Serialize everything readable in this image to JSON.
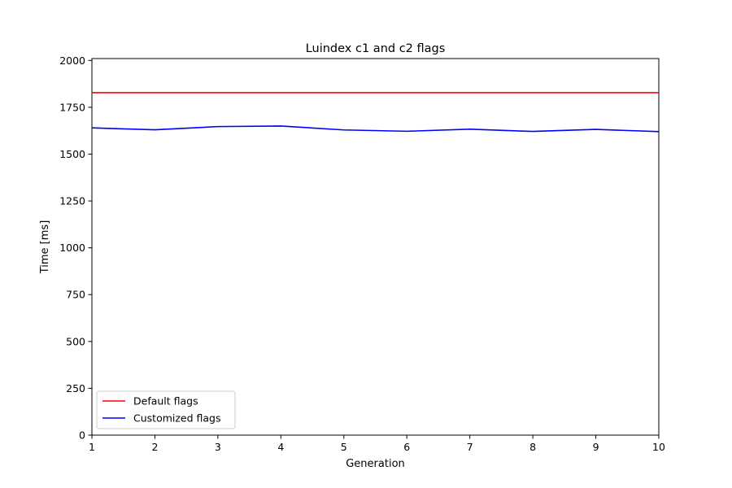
{
  "chart_data": {
    "type": "line",
    "title": "Luindex c1 and c2 flags",
    "xlabel": "Generation",
    "ylabel": "Time [ms]",
    "xlim": [
      1,
      10
    ],
    "ylim": [
      0,
      2010
    ],
    "xticks": [
      "1",
      "2",
      "3",
      "4",
      "5",
      "6",
      "7",
      "8",
      "9",
      "10"
    ],
    "yticks": [
      "0",
      "250",
      "500",
      "750",
      "1000",
      "1250",
      "1500",
      "1750",
      "2000"
    ],
    "grid": false,
    "legend_position": "lower-left",
    "x": [
      1,
      2,
      3,
      4,
      5,
      6,
      7,
      8,
      9,
      10
    ],
    "series": [
      {
        "name": "Default flags",
        "color": "#ff0000",
        "values": [
          1828,
          1828,
          1828,
          1828,
          1828,
          1828,
          1828,
          1828,
          1828,
          1828
        ]
      },
      {
        "name": "Customized flags",
        "color": "#0000ff",
        "values": [
          1640,
          1630,
          1647,
          1650,
          1629,
          1622,
          1633,
          1621,
          1632,
          1620
        ]
      }
    ]
  }
}
